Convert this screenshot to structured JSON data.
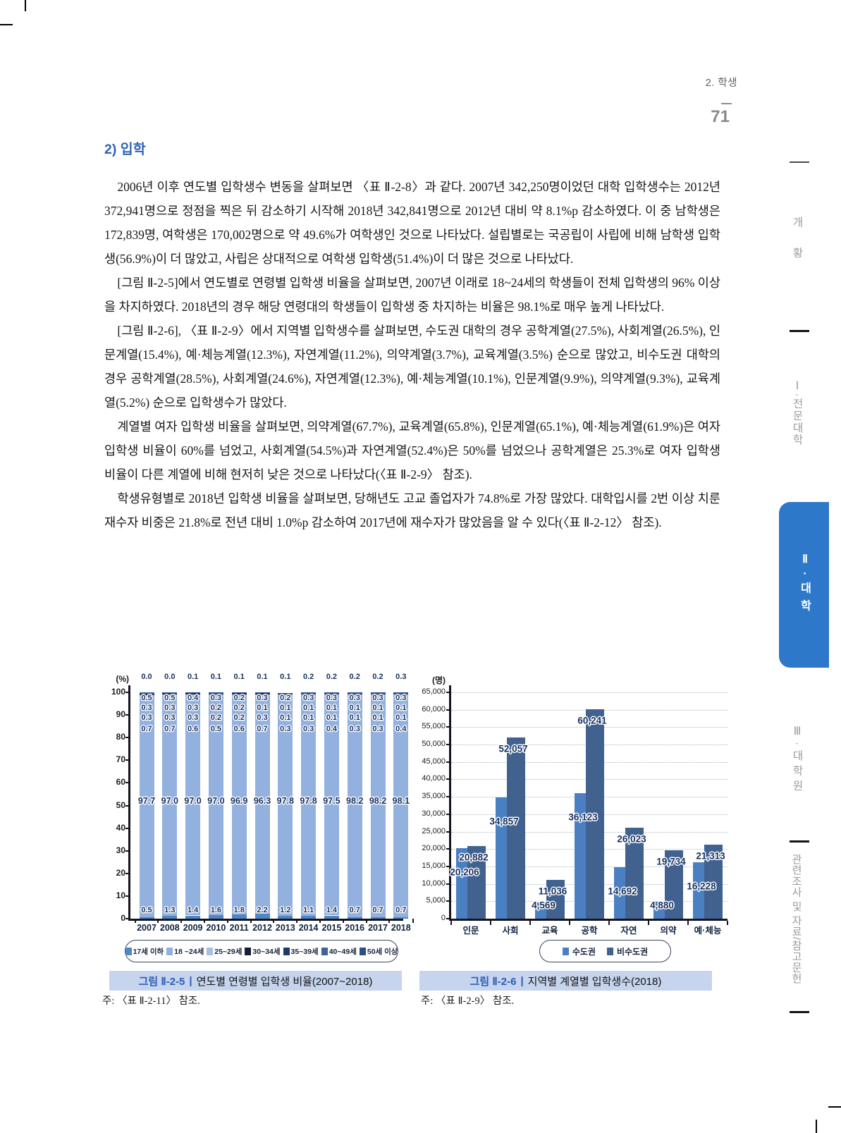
{
  "header": {
    "section_label": "2. 학생",
    "page_number": "71"
  },
  "section": {
    "heading": "2) 입학",
    "paragraphs": [
      "2006년 이후 연도별 입학생수 변동을 살펴보면 〈표 Ⅱ-2-8〉과 같다. 2007년 342,250명이었던 대학 입학생수는 2012년 372,941명으로 정점을 찍은 뒤 감소하기 시작해 2018년 342,841명으로 2012년 대비 약 8.1%p 감소하였다. 이 중 남학생은 172,839명, 여학생은 170,002명으로 약 49.6%가 여학생인 것으로 나타났다. 설립별로는 국공립이 사립에 비해 남학생 입학생(56.9%)이 더 많았고, 사립은 상대적으로 여학생 입학생(51.4%)이 더 많은 것으로 나타났다.",
      "[그림 Ⅱ-2-5]에서 연도별로 연령별 입학생 비율을 살펴보면, 2007년 이래로 18~24세의 학생들이 전체 입학생의 96% 이상을 차지하였다. 2018년의 경우 해당 연령대의 학생들이 입학생 중 차지하는 비율은 98.1%로 매우 높게 나타났다.",
      "[그림 Ⅱ-2-6], 〈표 Ⅱ-2-9〉에서 지역별 입학생수를 살펴보면, 수도권 대학의 경우 공학계열(27.5%), 사회계열(26.5%), 인문계열(15.4%), 예·체능계열(12.3%), 자연계열(11.2%), 의약계열(3.7%), 교육계열(3.5%) 순으로 많았고, 비수도권 대학의 경우 공학계열(28.5%), 사회계열(24.6%), 자연계열(12.3%), 예·체능계열(10.1%), 인문계열(9.9%), 의약계열(9.3%), 교육계열(5.2%) 순으로 입학생수가 많았다.",
      "계열별 여자 입학생 비율을 살펴보면, 의약계열(67.7%), 교육계열(65.8%), 인문계열(65.1%), 예·체능계열(61.9%)은 여자 입학생 비율이 60%를 넘었고, 사회계열(54.5%)과 자연계열(52.4%)은 50%를 넘었으나 공학계열은 25.3%로 여자 입학생 비율이 다른 계열에 비해 현저히 낮은 것으로 나타났다(〈표 Ⅱ-2-9〉 참조).",
      "학생유형별로 2018년 입학생 비율을 살펴보면, 당해년도 고교 졸업자가 74.8%로 가장 많았다. 대학입시를 2번 이상 치룬 재수자 비중은 21.8%로 전년 대비 1.0%p 감소하여 2017년에 재수자가 많았음을 알 수 있다(〈표 Ⅱ-2-12〉 참조)."
    ]
  },
  "charts": {
    "left": {
      "caption_prefix": "그림 Ⅱ-2-5",
      "caption_divider": "|",
      "caption_title": "연도별 연령별 입학생 비율(2007~2018)",
      "note": "주: 〈표 Ⅱ-2-11〉 참조."
    },
    "right": {
      "caption_prefix": "그림 Ⅱ-2-6",
      "caption_divider": "|",
      "caption_title": "지역별 계열별 입학생수(2018)",
      "note": "주: 〈표 Ⅱ-2-9〉 참조."
    }
  },
  "chart_data": [
    {
      "type": "bar",
      "variant": "stacked",
      "title": "연도별 연령별 입학생 비율(2007~2018)",
      "ylabel": "(%)",
      "ylim": [
        0,
        100
      ],
      "yticks": [
        0,
        10,
        20,
        30,
        40,
        50,
        60,
        70,
        80,
        90,
        100
      ],
      "grid": false,
      "legend_position": "bottom",
      "categories": [
        "2007",
        "2008",
        "2009",
        "2010",
        "2011",
        "2012",
        "2013",
        "2014",
        "2015",
        "2016",
        "2017",
        "2018"
      ],
      "series": [
        {
          "name": "17세 이하",
          "color": "#4e86c6",
          "values": [
            0.5,
            1.3,
            1.4,
            1.6,
            1.8,
            2.2,
            1.2,
            1.1,
            1.4,
            0.7,
            0.7,
            0.7
          ]
        },
        {
          "name": "18 ~24세",
          "color": "#93b1de",
          "values": [
            97.7,
            97.0,
            97.0,
            97.0,
            96.9,
            96.3,
            97.8,
            97.8,
            97.5,
            98.2,
            98.2,
            98.1
          ]
        },
        {
          "name": "25~29세",
          "color": "#a9bfdf",
          "values": [
            0.7,
            0.7,
            0.6,
            0.5,
            0.6,
            0.7,
            0.3,
            0.3,
            0.4,
            0.3,
            0.3,
            0.4
          ]
        },
        {
          "name": "30~34세",
          "color": "#131f38",
          "values": [
            0.3,
            0.3,
            0.3,
            0.2,
            0.2,
            0.3,
            0.1,
            0.1,
            0.1,
            0.1,
            0.1,
            0.1
          ]
        },
        {
          "name": "35~39세",
          "color": "#1e3a69",
          "values": [
            0.3,
            0.3,
            0.3,
            0.2,
            0.2,
            0.1,
            0.1,
            0.1,
            0.1,
            0.1,
            0.1,
            0.1
          ]
        },
        {
          "name": "40~49세",
          "color": "#3e6299",
          "values": [
            0.5,
            0.5,
            0.4,
            0.3,
            0.2,
            0.3,
            0.2,
            0.3,
            0.3,
            0.3,
            0.3,
            0.3
          ]
        },
        {
          "name": "50세 이상",
          "color": "#2a4f85",
          "values": [
            0.0,
            0.0,
            0.1,
            0.1,
            0.1,
            0.1,
            0.1,
            0.2,
            0.2,
            0.2,
            0.2,
            0.3
          ]
        }
      ]
    },
    {
      "type": "bar",
      "variant": "grouped",
      "title": "지역별 계열별 입학생수(2018)",
      "ylabel": "(명)",
      "ylim": [
        0,
        65000
      ],
      "yticks": [
        0,
        5000,
        10000,
        15000,
        20000,
        25000,
        30000,
        35000,
        40000,
        45000,
        50000,
        55000,
        60000,
        65000
      ],
      "grid": true,
      "legend_position": "bottom",
      "categories": [
        "인문",
        "사회",
        "교육",
        "공학",
        "자연",
        "의약",
        "예·체능"
      ],
      "series": [
        {
          "name": "수도권",
          "color": "#4a80c2",
          "values": [
            20206,
            34857,
            4569,
            36123,
            14692,
            4880,
            16228
          ]
        },
        {
          "name": "비수도권",
          "color": "#41618f",
          "values": [
            20882,
            52057,
            11036,
            60241,
            26023,
            19734,
            21313
          ]
        }
      ]
    }
  ],
  "sidebar": {
    "items": [
      {
        "label": "개황",
        "active": false
      },
      {
        "label": "Ⅰ·전문대학",
        "active": false
      },
      {
        "label": "Ⅱ·대학",
        "active": true
      },
      {
        "label": "Ⅲ·대학원",
        "active": false
      },
      {
        "label": "관련조사 및 자료/참고문헌",
        "active": false
      }
    ]
  }
}
